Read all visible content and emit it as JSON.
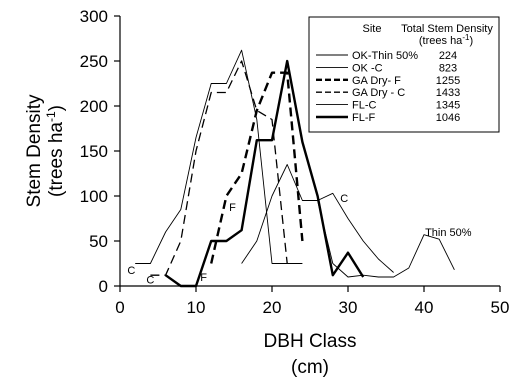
{
  "chart_data": {
    "type": "line",
    "xlabel": [
      "DBH Class",
      "(cm)"
    ],
    "ylabel": "Stem Density (trees ha-1)",
    "ylabel_lines": [
      "Stem Density",
      "(trees ha",
      "-1",
      ")"
    ],
    "xlim": [
      0,
      50
    ],
    "ylim": [
      0,
      300
    ],
    "x_ticks": [
      0,
      10,
      20,
      30,
      40,
      50
    ],
    "y_ticks": [
      0,
      50,
      100,
      150,
      200,
      250,
      300
    ],
    "grid": false,
    "legend": {
      "placement": "top-right",
      "header_site": "Site",
      "header_density": "Total Stem Density",
      "header_units": [
        "(trees ha",
        "-1",
        ")"
      ]
    },
    "series": [
      {
        "name": "OK-Thin 50%",
        "total_stem_density": "224",
        "style": "thin-solid",
        "x": [
          16,
          18,
          20,
          22,
          24,
          26,
          28,
          30,
          32,
          34,
          36,
          38,
          40,
          42,
          44
        ],
        "y": [
          25,
          50,
          100,
          135,
          95,
          95,
          25,
          10,
          12,
          10,
          10,
          20,
          57,
          52,
          18
        ]
      },
      {
        "name": "OK -C",
        "total_stem_density": "823",
        "style": "thin-solid",
        "x": [
          26,
          28,
          30,
          32,
          34,
          36
        ],
        "y": [
          95,
          103,
          75,
          50,
          30,
          15
        ]
      },
      {
        "name": "GA Dry- F",
        "total_stem_density": "1255",
        "style": "thick-dashed",
        "x": [
          12,
          14,
          16,
          18,
          20,
          22,
          24
        ],
        "y": [
          25,
          100,
          125,
          195,
          237,
          237,
          50
        ]
      },
      {
        "name": "GA Dry - C",
        "total_stem_density": "1433",
        "style": "thin-dashed",
        "x": [
          4,
          6,
          8,
          10,
          12,
          14,
          16,
          18,
          20,
          22
        ],
        "y": [
          12,
          12,
          50,
          150,
          215,
          215,
          250,
          195,
          185,
          25
        ]
      },
      {
        "name": "FL-C",
        "total_stem_density": "1345",
        "style": "thin-solid",
        "x": [
          2,
          4,
          6,
          8,
          10,
          12,
          14,
          16,
          18,
          20,
          22,
          24
        ],
        "y": [
          25,
          25,
          60,
          85,
          165,
          225,
          225,
          262,
          185,
          25,
          25,
          25
        ]
      },
      {
        "name": "FL-F",
        "total_stem_density": "1046",
        "style": "thick-solid",
        "x": [
          6,
          8,
          10,
          12,
          14,
          16,
          18,
          20,
          22,
          24,
          26,
          28,
          30,
          32
        ],
        "y": [
          12,
          0,
          0,
          50,
          50,
          62,
          162,
          162,
          250,
          160,
          100,
          12,
          37,
          10
        ]
      }
    ],
    "annotations": [
      {
        "text": "C",
        "x": 1.5,
        "y": 18
      },
      {
        "text": "C",
        "x": 4,
        "y": 7
      },
      {
        "text": "F",
        "x": 11,
        "y": 10
      },
      {
        "text": "F",
        "x": 14.8,
        "y": 88
      },
      {
        "text": "C",
        "x": 29.5,
        "y": 98
      },
      {
        "text": "Thin 50%",
        "x": 43.2,
        "y": 60
      }
    ]
  }
}
